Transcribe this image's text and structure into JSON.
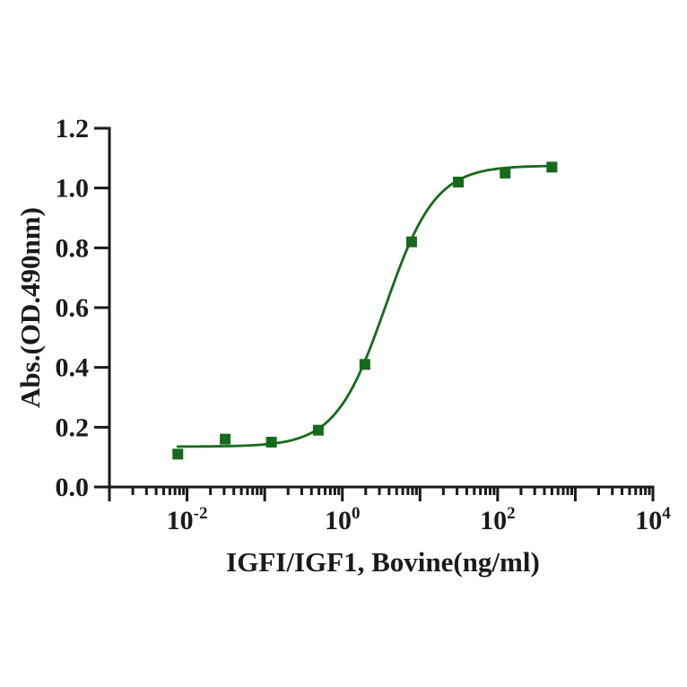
{
  "page": {
    "background": "#ffffff"
  },
  "colors": {
    "axis": "#1a1a1a",
    "series_green": "#17691b",
    "background": "#ffffff"
  },
  "chart_data": {
    "type": "scatter",
    "subtype": "dose-response-sigmoid",
    "title": "",
    "xlabel": "IGFI/IGF1, Bovine(ng/ml)",
    "ylabel": "Abs.(OD.490nm)",
    "x_scale": "log10",
    "x_range_log10": [
      -3,
      4
    ],
    "ylim": [
      0,
      1.2
    ],
    "grid": false,
    "legend": false,
    "y_ticks": [
      "0.0",
      "0.2",
      "0.4",
      "0.6",
      "0.8",
      "1.0",
      "1.2"
    ],
    "x_major_ticks_log10": [
      -3,
      -2,
      -1,
      0,
      1,
      2,
      3,
      4
    ],
    "x_tick_labels": [
      {
        "log10": -2,
        "base": "10",
        "exponent": "-2"
      },
      {
        "log10": 0,
        "base": "10",
        "exponent": "0"
      },
      {
        "log10": 2,
        "base": "10",
        "exponent": "2"
      },
      {
        "log10": 4,
        "base": "10",
        "exponent": "4"
      }
    ],
    "series": [
      {
        "name": "IGFI/IGF1, Bovine",
        "color": "#17691b",
        "marker": "square",
        "marker_size_px": 12,
        "points": [
          {
            "x": 0.0076,
            "y": 0.11
          },
          {
            "x": 0.031,
            "y": 0.16
          },
          {
            "x": 0.122,
            "y": 0.15
          },
          {
            "x": 0.49,
            "y": 0.19
          },
          {
            "x": 1.95,
            "y": 0.41
          },
          {
            "x": 7.8,
            "y": 0.82
          },
          {
            "x": 31.2,
            "y": 1.02
          },
          {
            "x": 125,
            "y": 1.05
          },
          {
            "x": 500,
            "y": 1.07
          }
        ]
      }
    ],
    "fit_curve": {
      "model": "4PL",
      "bottom": 0.135,
      "top": 1.075,
      "ec50": 3.6,
      "hill": 1.35,
      "x_start": 0.0076,
      "x_end": 500,
      "color": "#17691b"
    }
  }
}
